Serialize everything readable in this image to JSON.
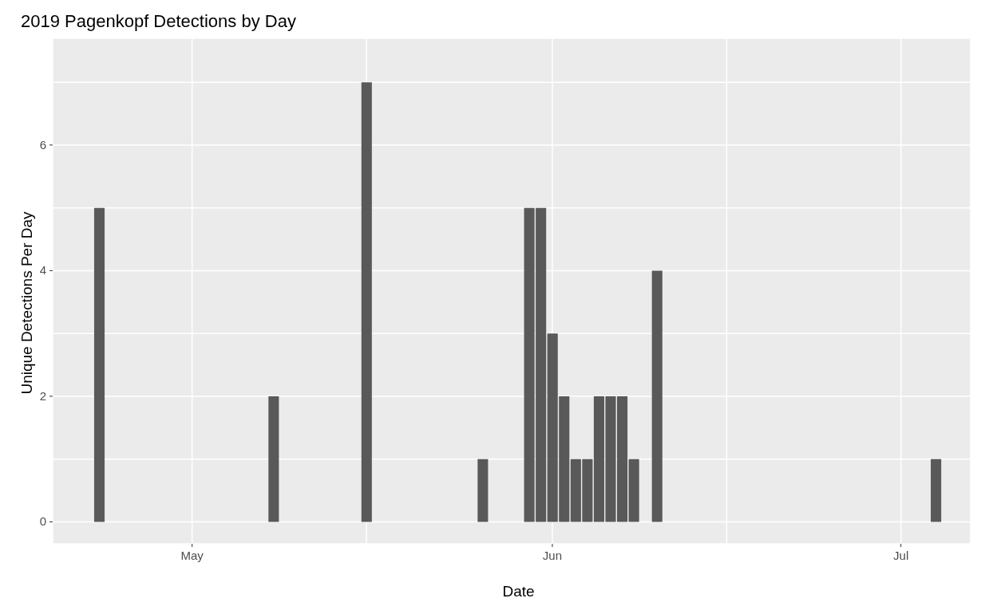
{
  "chart_data": {
    "type": "bar",
    "title": "2019 Pagenkopf Detections by Day",
    "xlabel": "Date",
    "ylabel": "Unique Detections Per Day",
    "x": [
      "2019-04-23",
      "2019-05-08",
      "2019-05-16",
      "2019-05-26",
      "2019-05-30",
      "2019-05-31",
      "2019-06-01",
      "2019-06-02",
      "2019-06-03",
      "2019-06-04",
      "2019-06-05",
      "2019-06-06",
      "2019-06-07",
      "2019-06-08",
      "2019-06-10",
      "2019-07-04"
    ],
    "values": [
      5,
      2,
      7,
      1,
      5,
      5,
      3,
      2,
      1,
      1,
      2,
      2,
      2,
      1,
      4,
      1
    ],
    "color": "#595959",
    "xlim": [
      "2019-04-19",
      "2019-07-07"
    ],
    "xticks": [
      {
        "value": "2019-05-01",
        "label": "May"
      },
      {
        "value": "2019-05-16",
        "label": null
      },
      {
        "value": "2019-06-01",
        "label": "Jun"
      },
      {
        "value": "2019-06-16",
        "label": null
      },
      {
        "value": "2019-07-01",
        "label": "Jul"
      }
    ],
    "ylim": [
      -0.35,
      7.7
    ],
    "yticks": [
      0,
      {
        "value": 1,
        "label": null
      },
      2,
      {
        "value": 3,
        "label": null
      },
      4,
      {
        "value": 5,
        "label": null
      },
      6,
      {
        "value": 7,
        "label": null
      }
    ],
    "grid": true
  }
}
